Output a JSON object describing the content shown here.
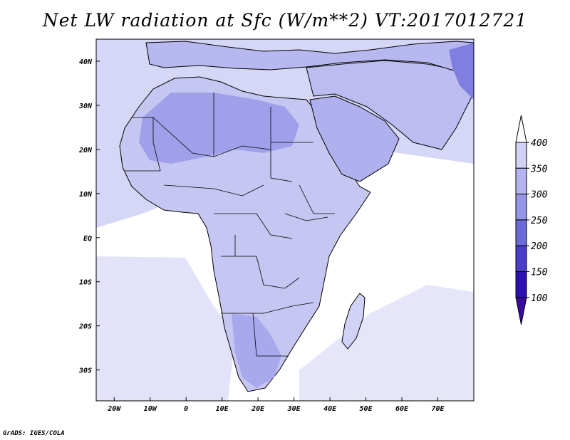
{
  "title": "Net LW radiation at Sfc (W/m**2) VT:2017012721",
  "credit": "GrADS: IGES/COLA",
  "map": {
    "region": "Africa",
    "field": "Net LW radiation at Sfc",
    "units": "W/m**2",
    "lon_range": [
      -25,
      80
    ],
    "lat_range": [
      -37,
      45
    ],
    "x_ticks": [
      "20W",
      "10W",
      "0",
      "10E",
      "20E",
      "30E",
      "40E",
      "50E",
      "60E",
      "70E"
    ],
    "x_tick_values": [
      -20,
      -10,
      0,
      10,
      20,
      30,
      40,
      50,
      60,
      70
    ],
    "y_ticks": [
      "40N",
      "30N",
      "20N",
      "10N",
      "EQ",
      "10S",
      "20S",
      "30S"
    ],
    "y_tick_values": [
      40,
      30,
      20,
      10,
      0,
      -10,
      -20,
      -30
    ]
  },
  "colorbar": {
    "labels": [
      "400",
      "350",
      "300",
      "250",
      "200",
      "150",
      "100"
    ],
    "levels": [
      400,
      350,
      300,
      250,
      200,
      150,
      100
    ],
    "colors": [
      "#e8e8fa",
      "#d2d2f6",
      "#b4b4f0",
      "#9696e6",
      "#6a6ad8",
      "#4a3ec8",
      "#2e0fb0"
    ],
    "max_color": "#ffffff",
    "min_color": "#3a0aa0"
  }
}
